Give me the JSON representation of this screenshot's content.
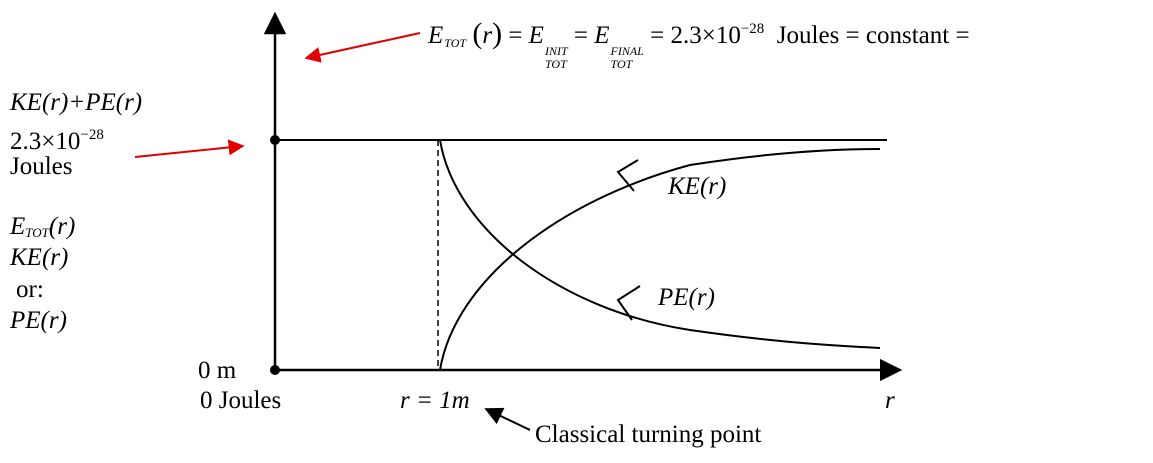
{
  "equation": {
    "lhs": "E",
    "lhs_sub": "TOT",
    "arg": "r",
    "init_sup": "INIT",
    "final_sup": "FINAL",
    "mantissa": "2.3×10",
    "exponent": "−28",
    "tail": "Joules = constant ="
  },
  "left_labels": {
    "sum_label": "KE(r)+PE(r)",
    "top_value_mantissa": "2.3×10",
    "top_value_exponent": "−28",
    "top_value_unit": "Joules",
    "etot_base": "E",
    "etot_sub": "TOT",
    "etot_arg": "(r)",
    "ke": "KE(r)",
    "or": "or:",
    "pe": "PE(r)"
  },
  "axis": {
    "origin_y_label": "0 m",
    "origin_x_label": "0 Joules",
    "r_eq": "r = 1m",
    "r_axis_label": "r"
  },
  "curve_labels": {
    "ke": "KE(r)",
    "pe": "PE(r)"
  },
  "turning_point_label": "Classical turning point",
  "colors": {
    "ink": "#000000",
    "pointer": "#e00000"
  }
}
